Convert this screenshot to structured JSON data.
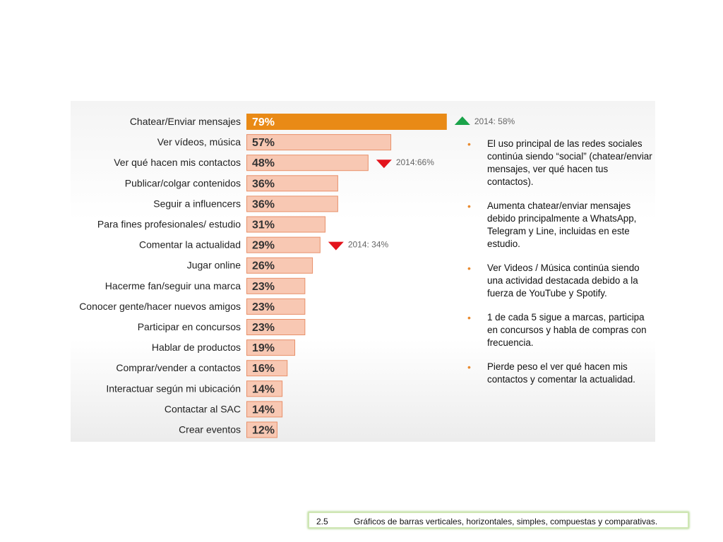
{
  "chart_data": {
    "type": "bar",
    "orientation": "horizontal",
    "categories": [
      "Chatear/Enviar mensajes",
      "Ver vídeos, música",
      "Ver qué hacen mis contactos",
      "Publicar/colgar contenidos",
      "Seguir a influencers",
      "Para fines profesionales/ estudio",
      "Comentar la actualidad",
      "Jugar online",
      "Hacerme fan/seguir una marca",
      "Conocer gente/hacer nuevos amigos",
      "Participar en concursos",
      "Hablar de productos",
      "Comprar/vender a contactos",
      "Interactuar según mi ubicación",
      "Contactar al SAC",
      "Crear eventos"
    ],
    "values": [
      79,
      57,
      48,
      36,
      36,
      31,
      29,
      26,
      23,
      23,
      23,
      19,
      16,
      14,
      14,
      12
    ],
    "value_labels": [
      "79%",
      "57%",
      "48%",
      "36%",
      "36%",
      "31%",
      "29%",
      "26%",
      "23%",
      "23%",
      "23%",
      "19%",
      "16%",
      "14%",
      "14%",
      "12%"
    ],
    "highlight_index": 0,
    "colors": {
      "highlight": "#e98a16",
      "bar": "#f8c8b3",
      "bar_border": "#e8906a",
      "up": "#1aa34a",
      "down": "#e3141c",
      "bar_text_light": "#ffffff",
      "bar_text_dark": "#333333"
    },
    "annotations": [
      {
        "category_index": 0,
        "direction": "up",
        "text": "2014: 58%"
      },
      {
        "category_index": 2,
        "direction": "down",
        "text": "2014:66%"
      },
      {
        "category_index": 6,
        "direction": "down",
        "text": "2014: 34%"
      }
    ]
  },
  "bullets": [
    "El uso principal de las redes sociales continúa siendo “social” (chatear/enviar mensajes, ver qué hacen tus contactos).",
    "Aumenta chatear/enviar mensajes debido principalmente a WhatsApp, Telegram y Line, incluidas en este estudio.",
    "Ver Videos / Música continúa siendo una actividad destacada debido a la fuerza de YouTube y Spotify.",
    "1 de cada 5 sigue a marcas, participa en concursos y habla de compras con frecuencia.",
    "Pierde peso el ver qué hacen mis contactos y comentar la actualidad."
  ],
  "caption": {
    "number": "2.5",
    "text": "Gráficos de barras verticales, horizontales, simples, compuestas y comparativas."
  }
}
